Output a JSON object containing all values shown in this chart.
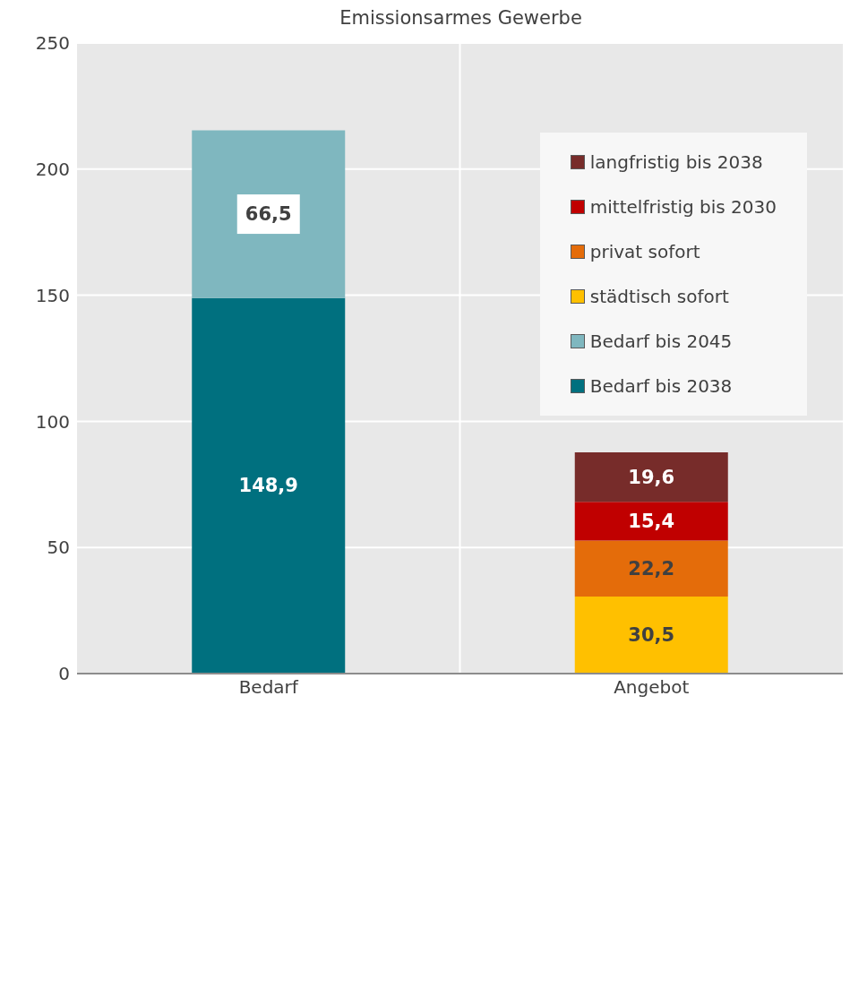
{
  "chart_data": {
    "type": "bar",
    "title": "Emissionsarmes Gewerbe",
    "categories": [
      "Bedarf",
      "Angebot"
    ],
    "stacked": true,
    "grid": true,
    "legend": "top right",
    "ylim": [
      0,
      250
    ],
    "yticks": [
      0,
      50,
      100,
      150,
      200,
      250
    ],
    "series": [
      {
        "name": "Bedarf bis 2038",
        "color": "#00707f",
        "values": [
          148.9,
          null
        ],
        "value_labels": [
          "148,9",
          null
        ]
      },
      {
        "name": "Bedarf bis 2045",
        "color": "#7fb7bf",
        "values": [
          66.5,
          null
        ],
        "value_labels": [
          "66,5",
          null
        ]
      },
      {
        "name": "städtisch sofort",
        "color": "#ffc000",
        "values": [
          null,
          30.5
        ],
        "value_labels": [
          null,
          "30,5"
        ]
      },
      {
        "name": "privat sofort",
        "color": "#e46c0a",
        "values": [
          null,
          22.2
        ],
        "value_labels": [
          null,
          "22,2"
        ]
      },
      {
        "name": "mittelfristig bis 2030",
        "color": "#c00000",
        "values": [
          null,
          15.4
        ],
        "value_labels": [
          null,
          "15,4"
        ]
      },
      {
        "name": "langfristig bis 2038",
        "color": "#772c2a",
        "values": [
          null,
          19.6
        ],
        "value_labels": [
          null,
          "19,6"
        ]
      }
    ]
  }
}
